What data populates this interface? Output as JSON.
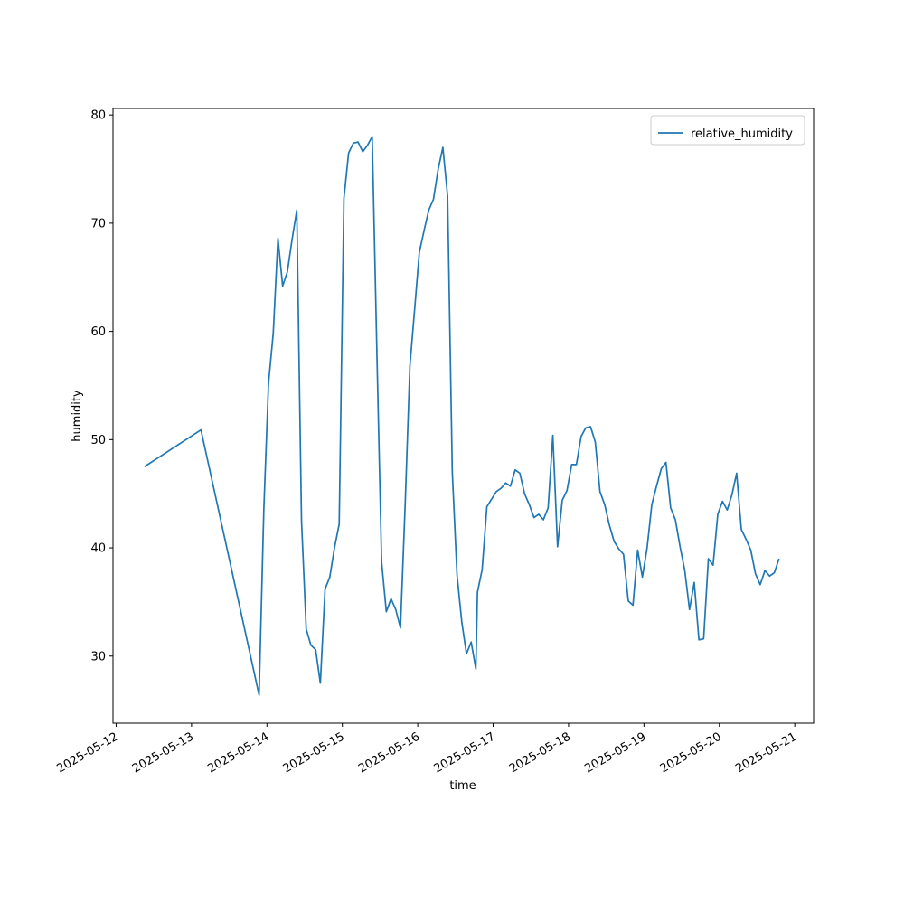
{
  "chart_data": {
    "type": "line",
    "x_label": "time",
    "y_label": "humidity",
    "x": [
      "2025-05-12 09:00",
      "2025-05-13 03:00",
      "2025-05-13 21:30",
      "2025-05-13 23:00",
      "2025-05-14 00:30",
      "2025-05-14 02:00",
      "2025-05-14 03:30",
      "2025-05-14 05:00",
      "2025-05-14 06:30",
      "2025-05-14 08:00",
      "2025-05-14 09:30",
      "2025-05-14 11:00",
      "2025-05-14 12:30",
      "2025-05-14 14:00",
      "2025-05-14 15:30",
      "2025-05-14 17:00",
      "2025-05-14 18:30",
      "2025-05-14 20:00",
      "2025-05-14 21:30",
      "2025-05-14 23:00",
      "2025-05-15 00:30",
      "2025-05-15 02:00",
      "2025-05-15 03:30",
      "2025-05-15 05:00",
      "2025-05-15 06:30",
      "2025-05-15 08:00",
      "2025-05-15 09:30",
      "2025-05-15 11:00",
      "2025-05-15 12:30",
      "2025-05-15 14:00",
      "2025-05-15 15:30",
      "2025-05-15 17:00",
      "2025-05-15 18:30",
      "2025-05-15 20:00",
      "2025-05-15 21:30",
      "2025-05-15 23:00",
      "2025-05-16 00:30",
      "2025-05-16 02:00",
      "2025-05-16 03:30",
      "2025-05-16 05:00",
      "2025-05-16 06:30",
      "2025-05-16 08:00",
      "2025-05-16 09:30",
      "2025-05-16 11:00",
      "2025-05-16 12:30",
      "2025-05-16 14:00",
      "2025-05-16 15:30",
      "2025-05-16 17:00",
      "2025-05-16 18:30",
      "2025-05-16 19:00",
      "2025-05-16 20:30",
      "2025-05-16 22:00",
      "2025-05-16 23:30",
      "2025-05-17 01:00",
      "2025-05-17 02:30",
      "2025-05-17 04:00",
      "2025-05-17 05:30",
      "2025-05-17 07:00",
      "2025-05-17 08:30",
      "2025-05-17 10:00",
      "2025-05-17 11:30",
      "2025-05-17 13:00",
      "2025-05-17 14:30",
      "2025-05-17 16:00",
      "2025-05-17 17:30",
      "2025-05-17 19:00",
      "2025-05-17 20:30",
      "2025-05-17 22:00",
      "2025-05-17 23:30",
      "2025-05-18 01:00",
      "2025-05-18 02:30",
      "2025-05-18 04:00",
      "2025-05-18 05:30",
      "2025-05-18 07:00",
      "2025-05-18 08:30",
      "2025-05-18 10:00",
      "2025-05-18 11:30",
      "2025-05-18 13:00",
      "2025-05-18 14:30",
      "2025-05-18 16:00",
      "2025-05-18 17:30",
      "2025-05-18 19:00",
      "2025-05-18 20:30",
      "2025-05-18 22:00",
      "2025-05-18 23:30",
      "2025-05-19 01:00",
      "2025-05-19 02:30",
      "2025-05-19 04:00",
      "2025-05-19 05:30",
      "2025-05-19 07:00",
      "2025-05-19 08:30",
      "2025-05-19 10:00",
      "2025-05-19 11:30",
      "2025-05-19 13:00",
      "2025-05-19 14:30",
      "2025-05-19 16:00",
      "2025-05-19 17:30",
      "2025-05-19 19:00",
      "2025-05-19 20:30",
      "2025-05-19 22:00",
      "2025-05-19 23:30",
      "2025-05-20 01:00",
      "2025-05-20 02:30",
      "2025-05-20 04:00",
      "2025-05-20 05:30",
      "2025-05-20 07:00",
      "2025-05-20 08:30",
      "2025-05-20 10:00",
      "2025-05-20 11:30",
      "2025-05-20 13:00",
      "2025-05-20 14:30",
      "2025-05-20 16:00",
      "2025-05-20 17:30",
      "2025-05-20 19:00"
    ],
    "series": [
      {
        "name": "relative_humidity",
        "color": "#1f77b4",
        "values": [
          47.5,
          50.9,
          26.4,
          43.5,
          55.2,
          59.8,
          68.6,
          64.2,
          65.5,
          68.5,
          71.2,
          42.5,
          32.5,
          31,
          30.6,
          27.5,
          36.2,
          37.3,
          40,
          42.2,
          72.3,
          76.5,
          77.4,
          77.5,
          76.6,
          77.2,
          78,
          58,
          38.7,
          34.1,
          35.3,
          34.3,
          32.6,
          44,
          56.8,
          62,
          67.3,
          69.3,
          71.2,
          72.2,
          75,
          77,
          72.5,
          47,
          37.5,
          33.2,
          30.2,
          31.3,
          28.8,
          35.9,
          38,
          43.8,
          44.5,
          45.2,
          45.5,
          46,
          45.7,
          47.2,
          46.9,
          45,
          44,
          42.8,
          43.1,
          42.6,
          43.7,
          50.4,
          40.1,
          44.4,
          45.3,
          47.7,
          47.7,
          50.3,
          51.1,
          51.2,
          49.8,
          45.2,
          44,
          42.1,
          40.6,
          39.9,
          39.4,
          35.1,
          34.7,
          39.8,
          37.3,
          40,
          44,
          45.7,
          47.3,
          47.9,
          43.7,
          42.6,
          40.1,
          37.9,
          34.3,
          36.8,
          31.5,
          31.6,
          39,
          38.4,
          43.1,
          44.3,
          43.5,
          44.9,
          46.9,
          41.7,
          40.8,
          39.8,
          37.6,
          36.6,
          37.9,
          37.4,
          37.7,
          39
        ]
      }
    ],
    "xlim": [
      "2025-05-11 23:00",
      "2025-05-21 06:00"
    ],
    "xticks": [
      "2025-05-12",
      "2025-05-13",
      "2025-05-14",
      "2025-05-15",
      "2025-05-16",
      "2025-05-17",
      "2025-05-18",
      "2025-05-19",
      "2025-05-20",
      "2025-05-21"
    ],
    "ylim": [
      23.8,
      80.6
    ],
    "yticks": [
      30,
      40,
      50,
      60,
      70,
      80
    ],
    "legend": "upper right"
  }
}
